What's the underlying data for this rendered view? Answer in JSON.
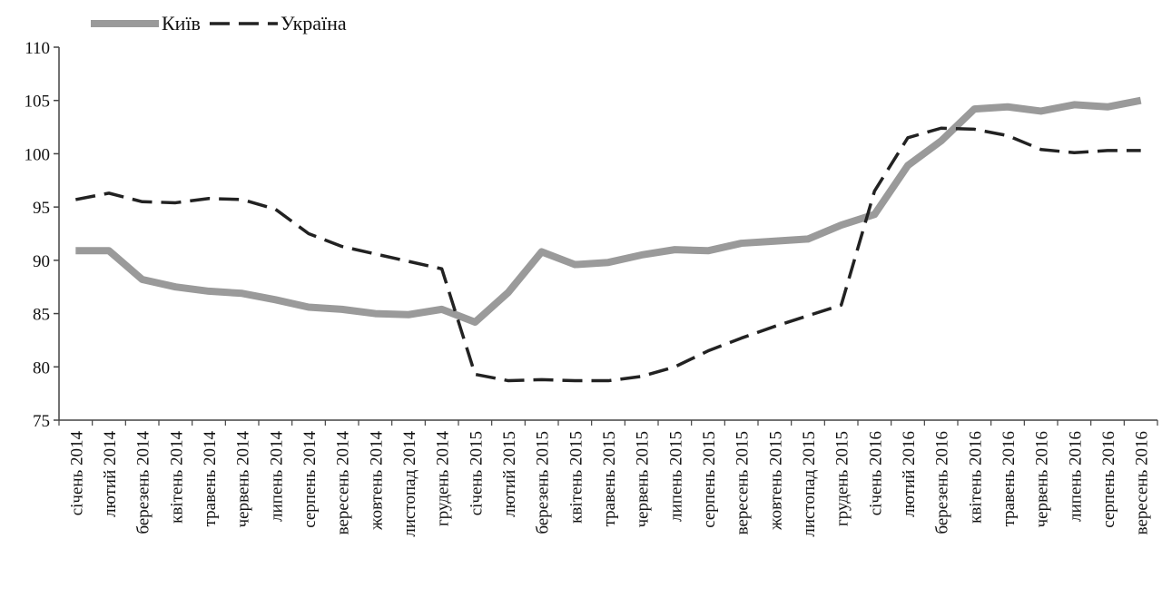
{
  "chart_data": {
    "type": "line",
    "categories": [
      "січень 2014",
      "лютий 2014",
      "березень 2014",
      "квітень 2014",
      "травень 2014",
      "червень 2014",
      "липень 2014",
      "серпень 2014",
      "вересень 2014",
      "жовтень 2014",
      "листопад 2014",
      "грудень 2014",
      "січень 2015",
      "лютий 2015",
      "березень 2015",
      "квітень 2015",
      "травень 2015",
      "червень 2015",
      "липень 2015",
      "серпень 2015",
      "вересень 2015",
      "жовтень 2015",
      "листопад 2015",
      "грудень 2015",
      "січень 2016",
      "лютий 2016",
      "березень 2016",
      "квітень 2016",
      "травень 2016",
      "червень 2016",
      "липень 2016",
      "серпень 2016",
      "вересень 2016"
    ],
    "series": [
      {
        "name": "Київ",
        "color": "#9a9a9a",
        "dashed": false,
        "values": [
          90.9,
          90.9,
          88.2,
          87.5,
          87.1,
          86.9,
          86.3,
          85.6,
          85.4,
          85.0,
          84.9,
          85.4,
          84.2,
          87.0,
          90.8,
          89.6,
          89.8,
          90.5,
          91.0,
          90.9,
          91.6,
          91.8,
          92.0,
          93.3,
          94.3,
          98.9,
          101.2,
          104.2,
          104.4,
          104.0,
          104.6,
          104.4,
          105.0
        ]
      },
      {
        "name": "Україна",
        "color": "#222222",
        "dashed": true,
        "values": [
          95.7,
          96.3,
          95.5,
          95.4,
          95.8,
          95.7,
          94.8,
          92.5,
          91.3,
          90.6,
          89.9,
          89.2,
          79.3,
          78.7,
          78.8,
          78.7,
          78.7,
          79.1,
          80.0,
          81.5,
          82.7,
          83.8,
          84.8,
          85.8,
          96.5,
          101.5,
          102.4,
          102.3,
          101.7,
          100.4,
          100.1,
          100.3,
          100.3
        ]
      }
    ],
    "ylim": [
      75,
      110
    ],
    "yticks": [
      75,
      80,
      85,
      90,
      95,
      100,
      105,
      110
    ]
  }
}
